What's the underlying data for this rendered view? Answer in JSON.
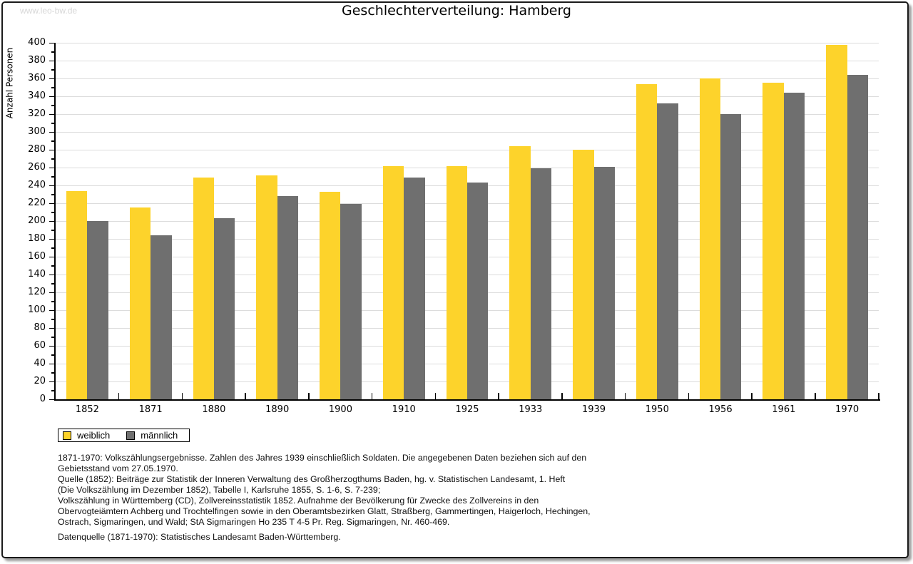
{
  "watermark": "www.leo-bw.de",
  "title": "Geschlechterverteilung: Hamberg",
  "chart_data": {
    "type": "bar",
    "title": "Geschlechterverteilung: Hamberg",
    "xlabel": "",
    "ylabel": "Anzahl Personen",
    "ylim": [
      0,
      400
    ],
    "ytick_step": 20,
    "yminor_step": 10,
    "grid": true,
    "legend_position": "bottom-left",
    "categories": [
      "1852",
      "1871",
      "1880",
      "1890",
      "1900",
      "1910",
      "1925",
      "1933",
      "1939",
      "1950",
      "1956",
      "1961",
      "1970"
    ],
    "series": [
      {
        "name": "weiblich",
        "color": "#fdd32b",
        "values": [
          234,
          215,
          249,
          251,
          233,
          262,
          262,
          284,
          280,
          354,
          360,
          355,
          398
        ]
      },
      {
        "name": "männlich",
        "color": "#6f6f6f",
        "values": [
          200,
          184,
          203,
          228,
          219,
          249,
          243,
          259,
          261,
          332,
          320,
          344,
          364
        ]
      }
    ]
  },
  "legend": {
    "items": [
      {
        "label": "weiblich",
        "color": "#fdd32b"
      },
      {
        "label": "männlich",
        "color": "#6f6f6f"
      }
    ]
  },
  "footnotes": {
    "lines": [
      "1871-1970: Volkszählungsergebnisse. Zahlen des Jahres 1939 einschließlich Soldaten. Die angegebenen Daten beziehen sich auf den",
      "Gebietsstand vom 27.05.1970.",
      "Quelle (1852): Beiträge zur Statistik der Inneren Verwaltung des Großherzogthums Baden, hg. v. Statistischen Landesamt, 1. Heft",
      "(Die Volkszählung im Dezember 1852), Tabelle I, Karlsruhe 1855, S. 1-6, S. 7-239;",
      "Volkszählung in Württemberg (CD), Zollvereinsstatistik 1852. Aufnahme der Bevölkerung für Zwecke des Zollvereins in den",
      "Obervogteiämtern Achberg und Trochtelfingen sowie in den Oberamtsbezirken Glatt, Straßberg, Gammertingen, Haigerloch, Hechingen,",
      "Ostrach, Sigmaringen, und Wald; StA Sigmaringen Ho 235 T 4-5 Pr. Reg. Sigmaringen, Nr. 460-469."
    ],
    "datasource": "Datenquelle (1871-1970): Statistisches Landesamt Baden-Württemberg."
  },
  "colors": {
    "female_bar": "#fdd32b",
    "male_bar": "#6f6f6f",
    "gridline": "#dcdcdc",
    "watermark": "#d6d6d6",
    "frame_border": "#1a1a1a",
    "frame_shadow": "#9c9c9c"
  }
}
